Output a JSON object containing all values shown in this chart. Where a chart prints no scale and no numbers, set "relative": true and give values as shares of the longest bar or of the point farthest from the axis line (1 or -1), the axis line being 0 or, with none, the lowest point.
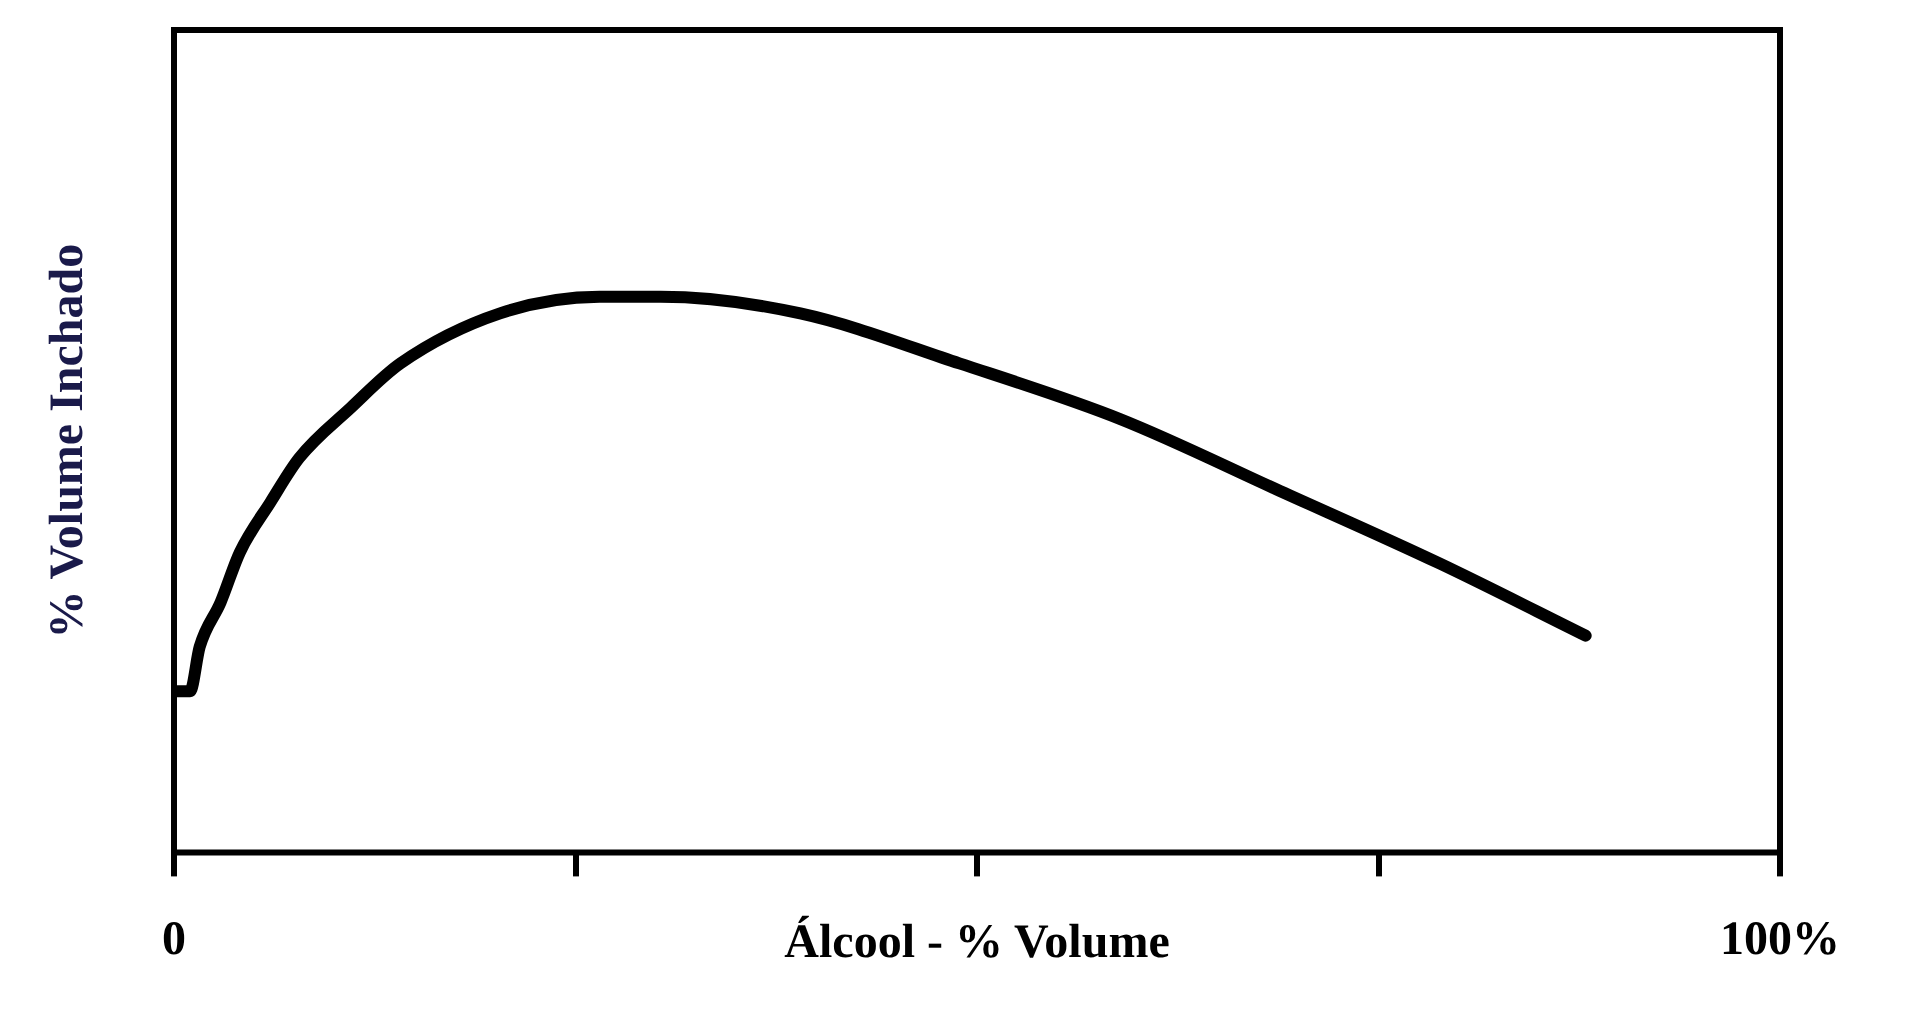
{
  "chart_data": {
    "type": "line",
    "xlabel": "Álcool - % Volume",
    "ylabel": "% Volume Inchado",
    "relative": true,
    "xlim": [
      0,
      100
    ],
    "xticks": [
      {
        "value": 0,
        "label": "0"
      },
      {
        "value": 25,
        "label": null
      },
      {
        "value": 50,
        "label": null
      },
      {
        "value": 75,
        "label": null
      },
      {
        "value": 100,
        "label": "100%"
      }
    ],
    "series": [
      {
        "color": "#000000",
        "x": [
          0.1,
          1.0,
          1.6,
          2.9,
          4.1,
          6.0,
          7.8,
          11.0,
          14.1,
          20.3,
          26.5,
          30.3,
          39.0,
          48.9,
          58.9,
          68.9,
          78.8,
          87.9
        ],
        "values": [
          0.29,
          0.29,
          0.37,
          0.45,
          0.54,
          0.63,
          0.71,
          0.8,
          0.88,
          0.97,
          1.0,
          1.0,
          0.97,
          0.88,
          0.78,
          0.65,
          0.52,
          0.39
        ]
      }
    ],
    "grid": false,
    "legend": false,
    "marker": "none",
    "line_style": "solid"
  }
}
